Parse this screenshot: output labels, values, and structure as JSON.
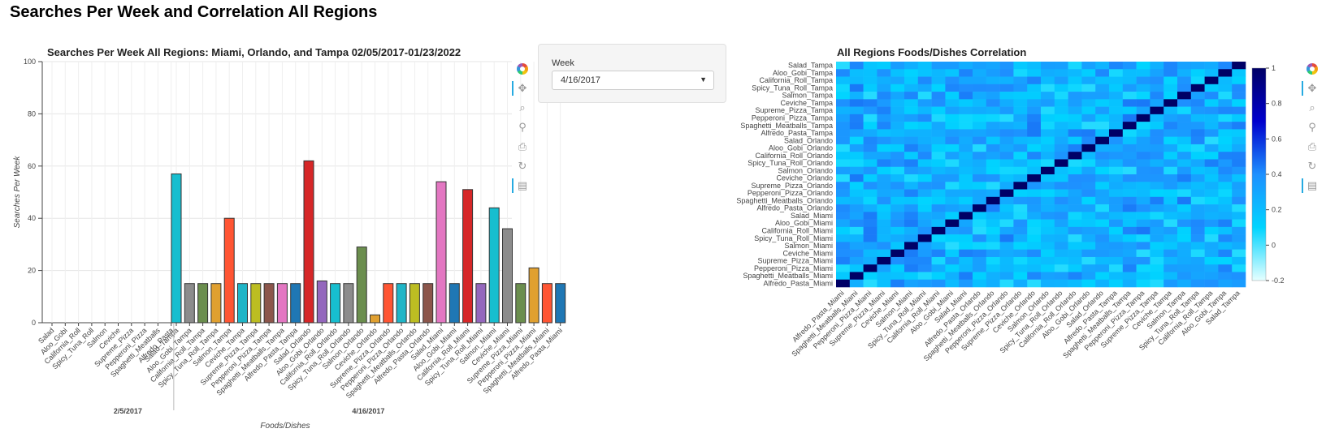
{
  "page_title": "Searches Per Week and Correlation All Regions",
  "week_widget": {
    "label": "Week",
    "selected": "4/16/2017"
  },
  "bar_chart": {
    "title": "Searches Per Week All Regions: Miami, Orlando, and Tampa 02/05/2017-01/23/2022",
    "ylabel": "Searches Per Week",
    "xlabel": "Foods/Dishes",
    "yticks": [
      "0",
      "20",
      "40",
      "60",
      "80",
      "100"
    ]
  },
  "heatmap": {
    "title": "All Regions Foods/Dishes Correlation",
    "colorbar_ticks": [
      "1",
      "0.8",
      "0.6",
      "0.4",
      "0.2",
      "0",
      "-0.2"
    ]
  },
  "toolbar_icons": [
    "bokeh-logo-icon",
    "pan-icon",
    "box-zoom-icon",
    "wheel-zoom-icon",
    "save-icon",
    "reset-icon",
    "hover-icon"
  ],
  "chart_data": [
    {
      "type": "bar",
      "title": "Searches Per Week All Regions: Miami, Orlando, and Tampa 02/05/2017-01/23/2022",
      "xlabel": "Foods/Dishes",
      "ylabel": "Searches Per Week",
      "ylim": [
        0,
        100
      ],
      "grid": true,
      "groups": [
        {
          "name": "2/5/2017",
          "categories": [
            "Salad",
            "Aloo_Gobi",
            "California_Roll",
            "Spicy_Tuna_Roll",
            "Salmon",
            "Ceviche",
            "Supreme_Pizza",
            "Pepperoni_Pizza",
            "Spaghetti_Meatballs",
            "Alfredo_Pasta"
          ],
          "values": [
            0,
            0,
            0,
            0,
            0,
            0,
            0,
            0,
            0,
            0
          ],
          "colors": [
            "#1fb5c7",
            "#8c8c8c",
            "#6b8e4e",
            "#e0a030",
            "#ff5533",
            "#1fb5c7",
            "#bcbd22",
            "#8c564b",
            "#e377c2",
            "#1f77b4"
          ]
        },
        {
          "name": "4/16/2017",
          "categories": [
            "Salad_Tampa",
            "Aloo_Gobi_Tampa",
            "California_Roll_Tampa",
            "Spicy_Tuna_Roll_Tampa",
            "Salmon_Tampa",
            "Ceviche_Tampa",
            "Supreme_Pizza_Tampa",
            "Pepperoni_Pizza_Tampa",
            "Spaghetti_Meatballs_Tampa",
            "Alfredo_Pasta_Tampa",
            "Salad_Orlando",
            "Aloo_Gobi_Orlando",
            "California_Roll_Orlando",
            "Spicy_Tuna_Roll_Orlando",
            "Salmon_Orlando",
            "Ceviche_Orlando",
            "Supreme_Pizza_Orlando",
            "Pepperoni_Pizza_Orlando",
            "Spaghetti_Meatballs_Orlando",
            "Alfredo_Pasta_Orlando",
            "Salad_Miami",
            "Aloo_Gobi_Miami",
            "California_Roll_Miami",
            "Spicy_Tuna_Roll_Miami",
            "Salmon_Miami",
            "Ceviche_Miami",
            "Supreme_Pizza_Miami",
            "Pepperoni_Pizza_Miami",
            "Spaghetti_Meatballs_Miami",
            "Alfredo_Pasta_Miami"
          ],
          "values": [
            57,
            15,
            15,
            15,
            40,
            15,
            15,
            15,
            15,
            15,
            62,
            16,
            15,
            15,
            29,
            3,
            15,
            15,
            15,
            15,
            54,
            15,
            51,
            15,
            44,
            36,
            15,
            21,
            15,
            15
          ],
          "colors": [
            "#17becf",
            "#8c8c8c",
            "#6b8e4e",
            "#e0a030",
            "#ff5533",
            "#1fb5c7",
            "#bcbd22",
            "#8c564b",
            "#e377c2",
            "#1f77b4",
            "#d62728",
            "#9467bd",
            "#17becf",
            "#8c8c8c",
            "#6b8e4e",
            "#e0a030",
            "#ff5533",
            "#1fb5c7",
            "#bcbd22",
            "#8c564b",
            "#e377c2",
            "#1f77b4",
            "#d62728",
            "#9467bd",
            "#17becf",
            "#8c8c8c",
            "#6b8e4e",
            "#e0a030",
            "#ff5533",
            "#1f77b4"
          ]
        }
      ]
    },
    {
      "type": "heatmap",
      "title": "All Regions Foods/Dishes Correlation",
      "y_labels_top_to_bottom": [
        "Salad_Tampa",
        "Aloo_Gobi_Tampa",
        "California_Roll_Tampa",
        "Spicy_Tuna_Roll_Tampa",
        "Salmon_Tampa",
        "Ceviche_Tampa",
        "Supreme_Pizza_Tampa",
        "Pepperoni_Pizza_Tampa",
        "Spaghetti_Meatballs_Tampa",
        "Alfredo_Pasta_Tampa",
        "Salad_Orlando",
        "Aloo_Gobi_Orlando",
        "California_Roll_Orlando",
        "Spicy_Tuna_Roll_Orlando",
        "Salmon_Orlando",
        "Ceviche_Orlando",
        "Supreme_Pizza_Orlando",
        "Pepperoni_Pizza_Orlando",
        "Spaghetti_Meatballs_Orlando",
        "Alfredo_Pasta_Orlando",
        "Salad_Miami",
        "Aloo_Gobi_Miami",
        "California_Roll_Miami",
        "Spicy_Tuna_Roll_Miami",
        "Salmon_Miami",
        "Ceviche_Miami",
        "Supreme_Pizza_Miami",
        "Pepperoni_Pizza_Miami",
        "Spaghetti_Meatballs_Miami",
        "Alfredo_Pasta_Miami"
      ],
      "x_labels_left_to_right": [
        "Alfredo_Pasta_Miami",
        "Spaghetti_Meatballs_Miami",
        "Pepperoni_Pizza_Miami",
        "Supreme_Pizza_Miami",
        "Ceviche_Miami",
        "Salmon_Miami",
        "Spicy_Tuna_Roll_Miami",
        "California_Roll_Miami",
        "Aloo_Gobi_Miami",
        "Salad_Miami",
        "Alfredo_Pasta_Orlando",
        "Spaghetti_Meatballs_Orlando",
        "Pepperoni_Pizza_Orlando",
        "Supreme_Pizza_Orlando",
        "Ceviche_Orlando",
        "Salmon_Orlando",
        "Spicy_Tuna_Roll_Orlando",
        "California_Roll_Orlando",
        "Aloo_Gobi_Orlando",
        "Salad_Orlando",
        "Alfredo_Pasta_Tampa",
        "Spaghetti_Meatballs_Tampa",
        "Pepperoni_Pizza_Tampa",
        "Supreme_Pizza_Tampa",
        "Ceviche_Tampa",
        "Salmon_Tampa",
        "Spicy_Tuna_Roll_Tampa",
        "California_Roll_Tampa",
        "Aloo_Gobi_Tampa",
        "Salad_Tampa"
      ],
      "value_range": [
        -0.2,
        1
      ],
      "diagonal_value": 1,
      "off_diagonal_typical_range": [
        0.05,
        0.45
      ],
      "colormap": [
        "#e6ffff",
        "#00d4ff",
        "#1e90ff",
        "#0000cd",
        "#000066"
      ]
    }
  ]
}
